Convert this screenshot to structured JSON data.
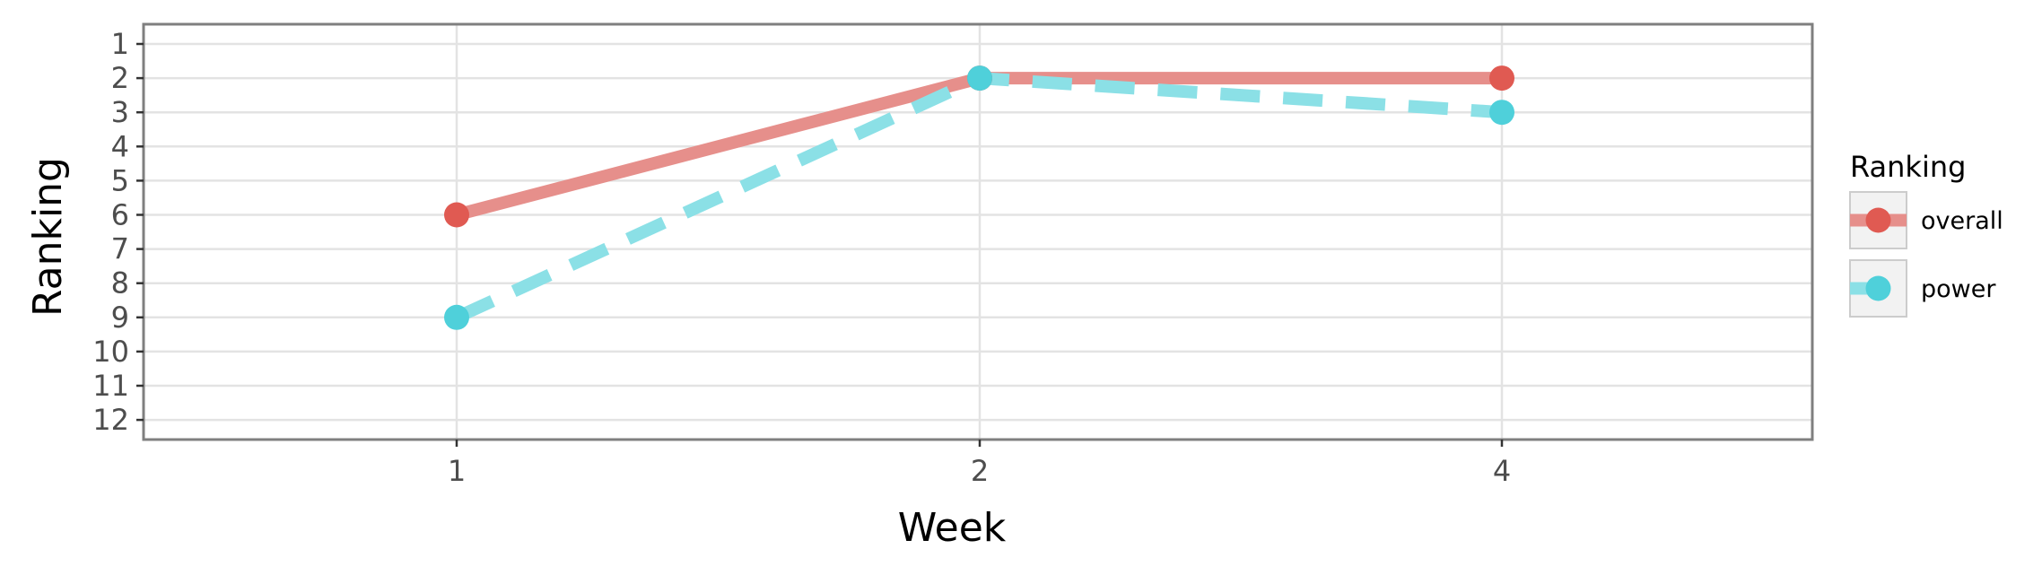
{
  "chart_data": {
    "type": "line",
    "xlabel": "Week",
    "ylabel": "Ranking",
    "categories": [
      "1",
      "2",
      "4"
    ],
    "y_ticks": [
      "1",
      "2",
      "3",
      "4",
      "5",
      "6",
      "7",
      "8",
      "9",
      "10",
      "11",
      "12"
    ],
    "ylim": [
      1,
      12
    ],
    "y_reversed": true,
    "grid": true,
    "legend": {
      "title": "Ranking",
      "position": "right"
    },
    "series": [
      {
        "name": "overall",
        "values": [
          6,
          2,
          2
        ],
        "color": "#e05a52",
        "line_color": "#e68f8b",
        "line_style": "solid"
      },
      {
        "name": "power",
        "values": [
          9,
          2,
          3
        ],
        "color": "#4fd0da",
        "line_color": "#8be0e6",
        "line_style": "dashed"
      }
    ]
  }
}
